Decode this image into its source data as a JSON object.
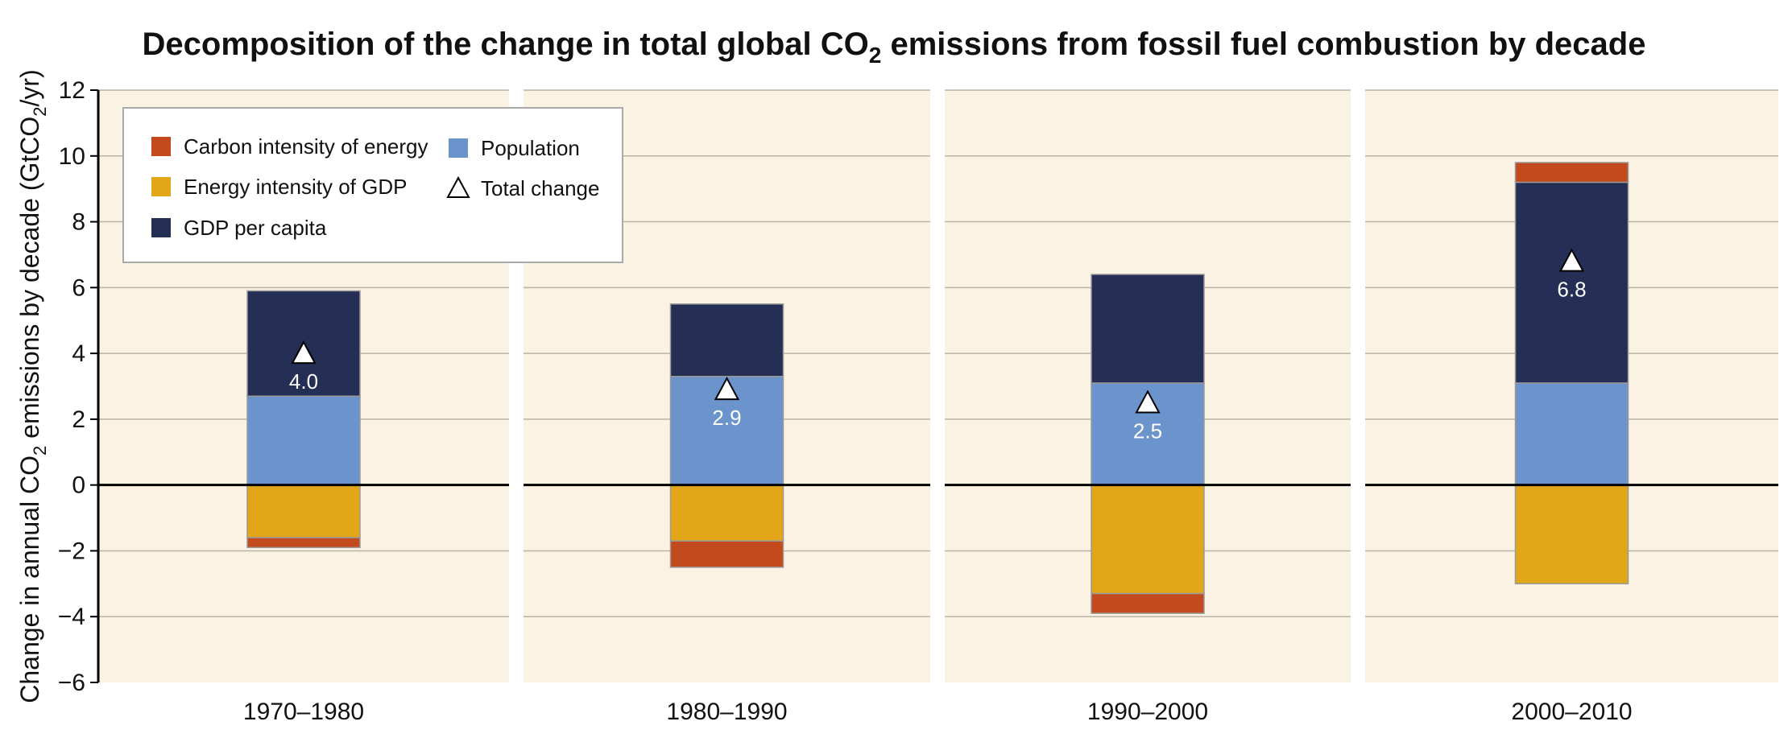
{
  "chart_data": {
    "type": "bar",
    "title": "Decomposition of the change in total global CO",
    "title_sub": "2",
    "title_end": " emissions from fossil fuel combustion by decade",
    "ylabel_parts": [
      "Change in annual CO",
      "2",
      " emissions by decade (GtCO",
      "2",
      "/yr)"
    ],
    "ylim": [
      -6,
      12
    ],
    "yticks": [
      12,
      10,
      8,
      6,
      4,
      2,
      0,
      -2,
      -4,
      -6
    ],
    "ytick_labels": [
      "12",
      "10",
      "8",
      "6",
      "4",
      "2",
      "0",
      "−2",
      "−4",
      "−6"
    ],
    "categories": [
      "1970–1980",
      "1980–1990",
      "1990–2000",
      "2000–2010"
    ],
    "grid": true,
    "legend_position": "top-left",
    "series": [
      {
        "name": "Carbon intensity of energy",
        "color": "#c34a1c",
        "values": [
          -0.3,
          -0.8,
          -0.6,
          0.6
        ]
      },
      {
        "name": "Energy intensity of GDP",
        "color": "#e2a618",
        "values": [
          -1.6,
          -1.7,
          -3.3,
          -3.0
        ]
      },
      {
        "name": "GDP per capita",
        "color": "#252e54",
        "values": [
          3.2,
          2.2,
          3.3,
          6.1
        ]
      },
      {
        "name": "Population",
        "color": "#6b93cc",
        "values": [
          2.7,
          3.3,
          3.1,
          3.1
        ]
      }
    ],
    "total_change": {
      "name": "Total change",
      "values": [
        4.0,
        2.9,
        2.5,
        6.8
      ],
      "labels": [
        "4.0",
        "2.9",
        "2.5",
        "6.8"
      ]
    },
    "colors": {
      "panel_bg": "#faf3e3",
      "gridline": "#b9b3a6",
      "zero_line": "#000000",
      "axis": "#000000"
    }
  }
}
